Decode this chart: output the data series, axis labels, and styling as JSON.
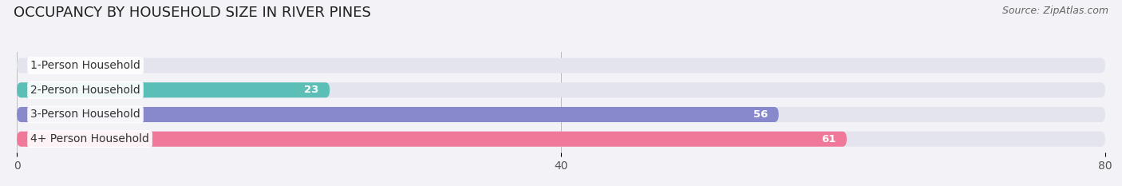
{
  "title": "OCCUPANCY BY HOUSEHOLD SIZE IN RIVER PINES",
  "source": "Source: ZipAtlas.com",
  "categories": [
    "1-Person Household",
    "2-Person Household",
    "3-Person Household",
    "4+ Person Household"
  ],
  "values": [
    0,
    23,
    56,
    61
  ],
  "bar_colors": [
    "#c9a8d4",
    "#5bbfb8",
    "#8888cc",
    "#f07898"
  ],
  "xlim": [
    0,
    80
  ],
  "xticks": [
    0,
    40,
    80
  ],
  "title_fontsize": 13,
  "source_fontsize": 9,
  "label_fontsize": 10,
  "value_fontsize": 9.5,
  "background_color": "#f2f2f7",
  "bar_background": "#e4e4ee"
}
